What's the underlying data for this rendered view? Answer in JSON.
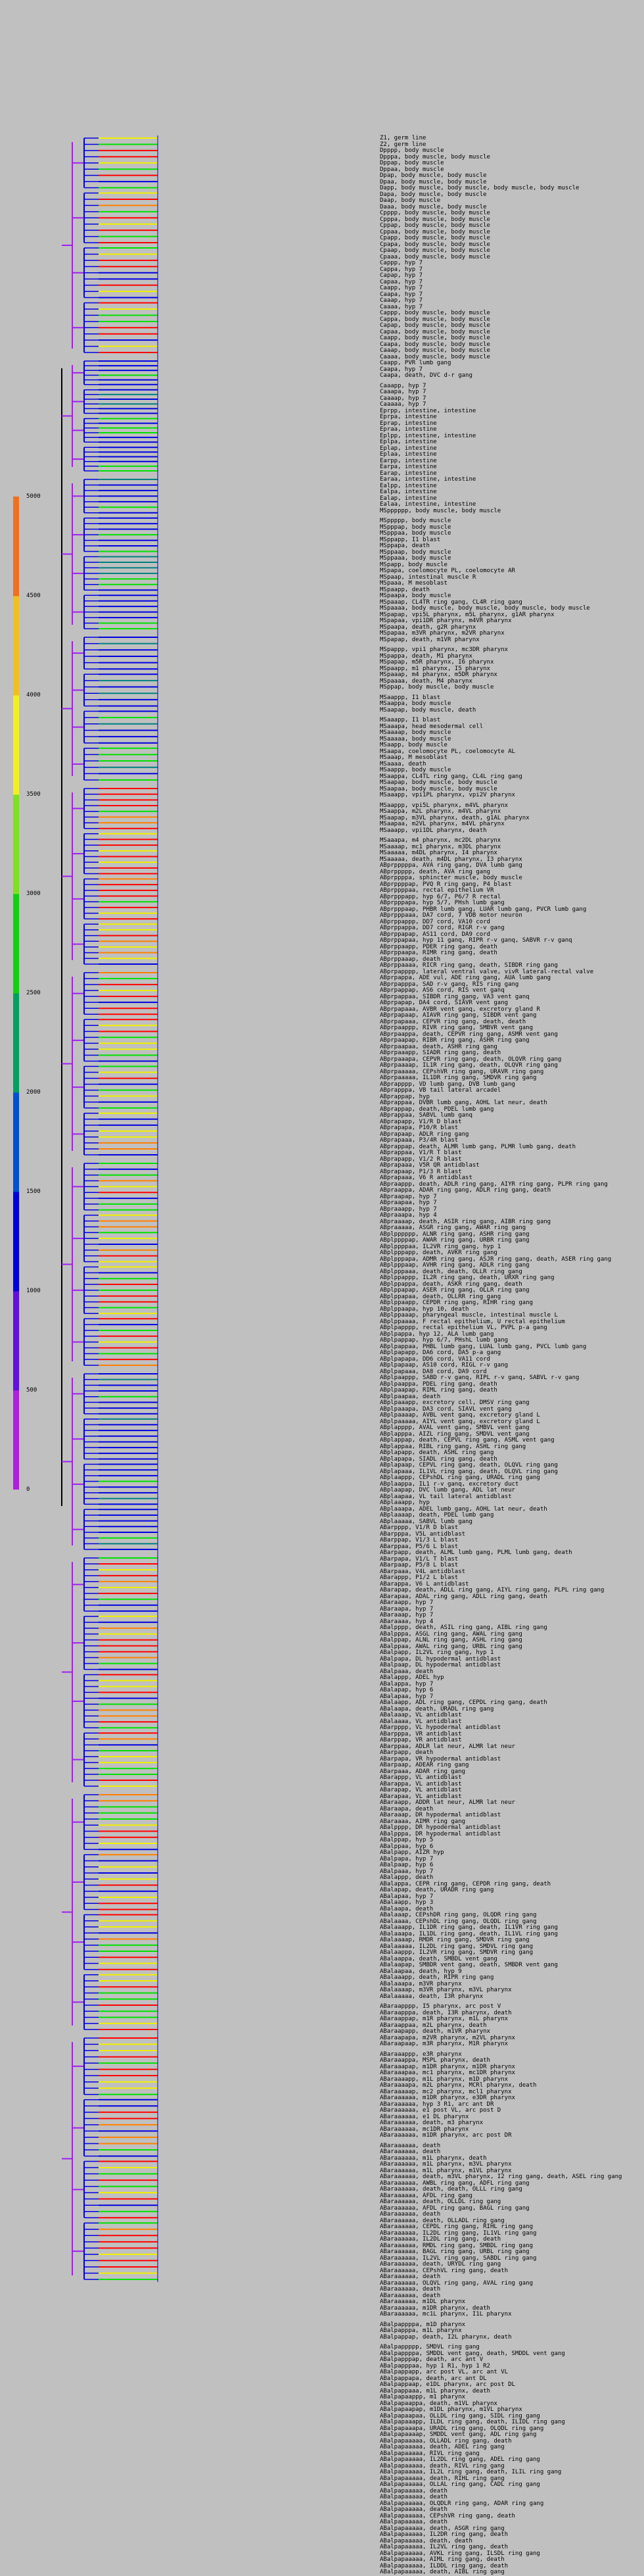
{
  "legend": {
    "ticks": [
      "5000",
      "4500",
      "4000",
      "3500",
      "3000",
      "2500",
      "2000",
      "1500",
      "1000",
      "500",
      "0"
    ],
    "colors": [
      "#b020e0",
      "#6010e0",
      "#0000e0",
      "#0050d0",
      "#00a060",
      "#10d010",
      "#80e020",
      "#f0f020",
      "#f0c020",
      "#f07020"
    ]
  },
  "colors": {
    "background": "#c0c0c0",
    "root_line": "#000000",
    "early": "#a020f0",
    "mid": "#0000e0",
    "teal": "#008080",
    "green": "#00e000",
    "yellow": "#f0f000",
    "orange": "#ff8000",
    "red": "#ff0000"
  },
  "labels": [
    "Z1, germ line",
    "Z2, germ line",
    "Dpppp, body muscle",
    "Dpppa, body muscle, body muscle",
    "Dppap, body muscle",
    "Dppaa, body muscle",
    "Dpap, body muscle, body muscle",
    "Dpaa, body muscle, body muscle",
    "Dapp, body muscle, body muscle, body muscle, body muscle",
    "Dapa, body muscle, body muscle",
    "Daap, body muscle",
    "Daaa, body muscle, body muscle",
    "Cpppp, body muscle, body muscle",
    "Cpppa, body muscle, body muscle",
    "Cppap, body muscle, body muscle",
    "Cppaa, body muscle, body muscle",
    "Cpapp, body muscle, body muscle",
    "Cpapa, body muscle, body muscle",
    "Cpaap, body muscle, body muscle",
    "Cpaaa, body muscle, body muscle",
    "Cappp, hyp 7",
    "Cappa, hyp 7",
    "Capap, hyp 7",
    "Capaa, hyp 7",
    "Caapp, hyp 7",
    "Caapa, hyp 7",
    "Caaap, hyp 7",
    "Caaaa, hyp 7",
    "Cappp, body muscle, body muscle",
    "Cappa, body muscle, body muscle",
    "Capap, body muscle, body muscle",
    "Capaa, body muscle, body muscle",
    "Caapp, body muscle, body muscle",
    "Caapa, body muscle, body muscle",
    "Caaap, body muscle, body muscle",
    "Caaaa, body muscle, body muscle",
    "Caapp, PVR lumb gang",
    "Caapa, hyp 7",
    "Caapa, death, DVC d-r gang",
    "",
    "Caaapp, hyp 7",
    "Caaapa, hyp 7",
    "Caaaap, hyp 7",
    "Caaaaa, hyp 7",
    "Eprpp, intestine, intestine",
    "Eprpa, intestine",
    "Eprap, intestine",
    "Epraa, intestine",
    "Eplpp, intestine, intestine",
    "Eplpa, intestine",
    "Eplap, intestine",
    "Eplaa, intestine",
    "Earpp, intestine",
    "Earpa, intestine",
    "Earap, intestine",
    "Earaa, intestine, intestine",
    "Ealpp, intestine",
    "Ealpa, intestine",
    "Ealap, intestine",
    "Ealaa, intestine, intestine",
    "MSpppppp, body muscle, body muscle",
    "",
    "MSppppp, body muscle",
    "MSpppap, body muscle",
    "MSpppaa, body muscle",
    "MSppapp, I1 blast",
    "MSppapa, death",
    "MSppaap, body muscle",
    "MSppaaa, body muscle",
    "MSpapp, body muscle",
    "MSpapa, coelomocyte PL, coelomocyte AR",
    "MSpaap, intestinal muscle R",
    "MSpaaa, M mesoblast",
    "MSpaapp, death",
    "MSpaapa, body muscle",
    "MSpaaap, CL4TR ring gang, CL4R ring gang",
    "MSpaaaa, body muscle, body muscle, body muscle, body muscle",
    "MSpapap, vpi5L pharynx, m5L pharynx, g1AR pharynx",
    "MSpapaa, vpi1DR pharynx, m4VR pharynx",
    "MSpaapa, death, g2R pharynx",
    "MSpapaa, m3VR pharynx, m2VR pharynx",
    "MSpapap, death, m1VR pharynx",
    "",
    "MSpappp, vpi1 pharynx, mc3DR pharynx",
    "MSpappa, death, M1 pharynx",
    "MSpapap, m5R pharynx, I6 pharynx",
    "MSpaapp, m1 pharynx, I5 pharynx",
    "MSpaaap, m4 pharynx, m5DR pharynx",
    "MSpaaaa, death, M4 pharynx",
    "MSppap, body muscle, body muscle",
    "",
    "MSaappp, I1 blast",
    "MSaappa, body muscle",
    "MSaapap, body muscle, death",
    "",
    "MSaaapp, I1 blast",
    "MSaaapa, head mesodermal cell",
    "MSaaaap, body muscle",
    "MSaaaaa, body muscle",
    "MSaapp, body muscle",
    "MSaapa, coelomocyte PL, coelomocyte AL",
    "MSaaap, M mesoblast",
    "MSaaaa, death",
    "MSaappp, body muscle",
    "MSaappa, CL4TL ring gang, CL4L ring gang",
    "MSaapap, body muscle, body muscle",
    "MSaapaa, body muscle, body muscle",
    "MSaaapp, vpi1PL pharynx, vpi2V pharynx",
    "",
    "MSaappp, vpi5L pharynx, m4VL pharynx",
    "MSaappa, m2L pharynx, m4VL pharynx",
    "MSaapap, m3VL pharynx, death, g1AL pharynx",
    "MSaapaa, m2VL pharynx, m4VL pharynx",
    "MSaaapp, vpi1DL pharynx, death",
    "",
    "MSaaapa, m4 pharynx, mc2DL pharynx",
    "MSaaaap, mc1 pharynx, m3DL pharynx",
    "MSaaaaa, m4DL pharynx, I4 pharynx",
    "MSaaaaa, death, m4DL pharynx, I3 pharynx",
    "ABprpppppa, AVA ring gang, DVA lumb gang",
    "ABprppppp, death, AVA ring gang",
    "ABprppppa, sphincter muscle, body muscle",
    "ABprppppap, PVQ R ring gang, P4 blast",
    "ABprppppaa, rectal epithelium VR",
    "ABprpppapp, hyp 6/7, P6/7 R rectal",
    "ABprpppapa, hyp 5/7, PHsh lumb gang",
    "ABprpppaap, PHBR lumb gang, LUAR lumb gang, PVCR lumb gang",
    "ABprpppaaa, DA7 cord, 7 VDB motor neuron",
    "ABprppappp, DD7 cord, VA10 cord",
    "ABprppappa, DD7 cord, RIGR r-v gang",
    "ABprppapap, AS11 cord, DA9 cord",
    "ABprppapaa, hyp 11 ganq, RIPR r-v ganq, SABVR r-v ganq",
    "ABprppaapp, PDER ring gang, death",
    "ABprppaapa, RIMR ring gang, death",
    "ABprppaaap, death",
    "ABprppaaaa, RICR ring gang, death, SIBDR ring gang",
    "ABprpapppp, lateral ventral valve, vivR lateral-rectal valve",
    "ABprpappa, ADE vul, ADE ring gang, AUA lumb gang",
    "ABprpapppa, SAD r-v ganq, RIS ring gang",
    "ABprpappap, AS6 cord, RIS vent ganq",
    "ABprpappaa, SIBDR ring gang, VA3 vent ganq",
    "ABprpapap, DA4 cord, SIAVR vent gang",
    "ABprpapaaa, AVBR vent ganq, excretory gland R",
    "ABprpapaap, AIAVR ring gang, SIBDR vent gang",
    "ABprpapaaa, CEPVR ring gang, death, death",
    "ABprpaappp, RIVR ring gang, SMBVR vent gang",
    "ABprpaappa, death, CEPVR ring gang, ASMR vent gang",
    "ABprpaapap, RIBR ring gang, ASHR ring gang",
    "ABprpaapaa, death, ASHR ring gang",
    "ABprpaaapp, SIADR ring gang, death",
    "ABprpaaapa, CEPVR ring gang, death, OLQVR ring gang",
    "ABprpaaaap, IL1R ring gang, death, OLQVR ring gang",
    "ABprpaaaaa, CEPshVR ring gang, URAVR ring gang",
    "ABprpaaaaa, IL1DR ring gang, SMDVR ring gang",
    "ABprapppp, VD lumb gang, DVB lumb gang",
    "ABprapppa, VB tail lateral arcadel",
    "ABprappap, hyp",
    "ABprappaa, DVBR lumb gang, AOHL lat neur, death",
    "ABprappap, death, PDEL lumb gang",
    "ABprappaa, SABVL lumb ganq",
    "ABprapapp, V1/R D blast",
    "ABprapapa, P10/R blast",
    "ABprapaap, ADLR ring gang",
    "ABprapaaa, P3/4R blast",
    "ABprappap, death, ALMR lumb gang, PLMR lumb gang, death",
    "ABprappaa, V1/R T blast",
    "ABprapapp, V1/2 R blast",
    "ABprapaaa, V5R QR antidblast",
    "ABprapaap, P1/3 R blast",
    "ABprapaaa, V6 R antidblast",
    "ABpraappp, death, ADLR ring gang, AIYR ring gang, PLPR ring gang",
    "ABpraappa, ADAR ring gang, ADLR ring gang, death",
    "ABpraapap, hyp 7",
    "ABpraapaa, hyp 7",
    "ABpraaapp, hyp 7",
    "ABpraaapa, hyp 4",
    "ABpraaaap, death, ASIR ring gang, AIBR ring gang",
    "ABpraaaaa, ASGR ring gang, AWAR ring gang",
    "ABplpppppp, ALNR ring gang, ASHR ring gang",
    "ABplppppap, AWAR ring gang, URBR ring gang",
    "ABplppppaa, IL2VR ring gang, hyp 1",
    "ABplpppapp, death, AVKR ring gang",
    "ABplpppapa, ADMR ring gang, ASJR ring gang, death, ASER ring gang",
    "ABplpppaap, AVHR ring gang, ADLR ring gang",
    "ABplpppaaa, death, death, OLLR ring gang",
    "ABplppappp, IL2R ring gang, death, URXR ring gang",
    "ABplppappa, death, ASKR ring gang, death",
    "ABplppapap, ASER ring gang, OLLR ring gang",
    "ABplppapaa, death, OLLRR ring gang",
    "ABplppaapp, CEPDR ring gang, RIHR ring gang",
    "ABplppaapa, hyp 10, death",
    "ABplppaaap, pharyngeal muscle, intestinal muscle L",
    "ABplppaaaa, F rectal epithelium, U rectal epithelium",
    "ABplpapppp, rectal epithelium VL, PVPL p-a gang",
    "ABplpappa, hyp 12, ALA lumb gang",
    "ABplpappap, hyp 6/7, PHshL lumb gang",
    "ABplpappaa, PHBL lumb gang, LUAL lumb gang, PVCL lumb gang",
    "ABplpapapp, DA6 cord, DA5 p-a gang",
    "ABplpapapa, DD6 cord, VA11 cord",
    "ABplpapaap, AS10 cord, RIGL r-v gang",
    "ABplpapaaa, DA8 cord, DA9 cord",
    "ABplpaappp, SABD r-v ganq, RIPL r-v ganq, SABVL r-v gang",
    "ABplpaappa, PDEL ring gang, death",
    "ABplpaapap, RIML ring gang, death",
    "ABplpaapaa, death",
    "ABplpaaapp, excretory cell, DMSV ring gang",
    "ABplpaaapa, DA3 cord, SIAVL vent gang",
    "ABplpaaaap, AVBL vent ganq, excretory gland L",
    "ABplpaaaaa, AIYL vent ganq, excretory gland L",
    "ABplapppp, AVAL vent gang, SMBVL vent gang",
    "ABplapppa, AIZL ring gang, SMDVL vent gang",
    "ABplappap, death, CEPVL ring gang, ASML vent gang",
    "ABplappaa, RIBL ring gang, ASHL ring gang",
    "ABplapapp, death, ASHL ring gang",
    "ABplapapa, SIADL ring gang, death",
    "ABplapaap, CEPVL ring gang, death, OLQVL ring gang",
    "ABplapaaa, IL1VL ring gang, death, OLQVL ring gang",
    "ABplaappp, CEPshDL ring gang, URADL ring gang",
    "ABplaappa, IL1 r-v ganq, excretory duct",
    "ABplaapap, DVC lumb gang, ADL lat neur",
    "ABplaapaa, VL tail lateral antidblast",
    "ABplaaapp, hyp",
    "ABplaaapa, ADEL lumb gang, AOHL lat neur, death",
    "ABplaaaap, death, PDEL lumb gang",
    "ABplaaaaa, SABVL lumb gang",
    "ABarpppp, V1/R D blast",
    "ABarpppa, V5L antidblast",
    "ABarppap, V1/3 L blast",
    "ABarppaa, P5/6 L blast",
    "ABarpapp, death, ALML lumb gang, PLML lumb gang, death",
    "ABarpapa, V1/L T blast",
    "ABarpaap, P5/8 L blast",
    "ABarpaaa, V4L antidblast",
    "ABarappp, P1/2 L blast",
    "ABarappa, V6 L antidblast",
    "ABarapap, death, ADLL ring gang, AIYL ring gang, PLPL ring gang",
    "ABarapaa, ADAL ring gang, ADLL ring gang, death",
    "ABaraapp, hyp 7",
    "ABaraapa, hyp 7",
    "ABaraaap, hyp 7",
    "ABaraaaa, hyp 4",
    "ABalpppp, death, ASIL ring gang, AIBL ring gang",
    "ABalpppa, ASGL ring gang, AWAL ring gang",
    "ABalppap, ALNL ring gang, ASHL ring gang",
    "ABalppaa, AWAL ring gang, URBL ring gang",
    "ABalpapp, IL2VL ring gang, hyp 1",
    "ABalpapa, DL hypodermal antidblast",
    "ABalpaap, DL hypodermal antidblast",
    "ABalpaaa, death",
    "ABalappp, ADEL hyp",
    "ABalappa, hyp 7",
    "ABalapap, hyp 6",
    "ABalapaa, hyp 7",
    "ABalaapp, ADL ring gang, CEPDL ring gang, death",
    "ABalaapa, death, URADL ring gang",
    "ABalaaap, VL antidblast",
    "ABalaaaa, VL antidblast",
    "ABarpppp, VL hypodermal antidblast",
    "ABarpppa, VR antidblast",
    "ABarppap, VR antidblast",
    "ABarppaa, ADLR lat neur, ALMR lat neur",
    "ABarpapp, death",
    "ABarpapa, VR hypodermal antidblast",
    "ABarpaap, ADEAR ring gang",
    "ABarpaaa, ADAR ring gang",
    "ABarappp, VL antidblast",
    "ABarappa, VL antidblast",
    "ABarapap, VL antidblast",
    "ABarapaa, VL antidblast",
    "ABaraapp, ADDR lat neur, ALMR lat neur",
    "ABaraapa, death",
    "ABaraaap, DR hypodermal antidblast",
    "ABaraaaa, AIMR ring gang",
    "ABalpppp, DR hypodermal antidblast",
    "ABalpppa, DR hypodermal antidblast",
    "ABalppap, hyp 5",
    "ABalppaa, hyp 6",
    "ABalpapp, AIZR hyp",
    "ABalpapa, hyp 7",
    "ABalpaap, hyp 6",
    "ABalpaaa, hyp 7",
    "ABalappp, death",
    "ABalappa, CEPR ring gang, CEPDR ring gang, death",
    "ABalapap, death, URADR ring gang",
    "ABalapaa, hyp 7",
    "ABalaapp, hyp 3",
    "ABalaapa, death",
    "ABalaaap, CEPshDR ring gang, OLQDR ring gang",
    "ABalaaaa, CEPshDL ring gang, OLQDL ring gang",
    "ABalaaapp, IL1DR ring gang, death, IL1VR ring gang",
    "ABalaaapa, IL1DL ring gang, death, IL1VL ring gang",
    "ABalaaaap, RMDR ring gang, SMDVR ring gang",
    "ABalaaaaa, IL2DL ring gang, SMDVL ring gang",
    "ABalaappp, IL2VR ring gang, SMDVR ring gang",
    "ABalaappa, death, SMBDL vent gang",
    "ABalaapap, SMBDR vent gang, death, SMBDR vent gang",
    "ABalaapaa, death, hyp 9",
    "ABalaaapp, death, RIPR ring gang",
    "ABalaaapa, m3VR pharynx",
    "ABalaaaap, m3VR pharynx, m3VL pharynx",
    "ABalaaaaa, death, I3R pharynx",
    "",
    "ABaraapppp, I5 pharynx, arc post V",
    "ABaraapppa, death, I3R pharynx, death",
    "ABaraappap, m1R pharynx, m1L pharynx",
    "ABaraappaa, m2L pharynx, death",
    "ABaraapapp, death, m1VR pharynx",
    "ABaraapapa, m2VR pharynx, m2VL pharynx",
    "ABaraapaap, m3R pharynx, M1R pharynx",
    "",
    "ABaraaappp, e3R pharynx",
    "ABaraaappa, MSPL pharynx, death",
    "ABaraaapap, m1DR pharynx, m1DR pharynx",
    "ABaraaapaa, mc1 pharynx, mc1DR pharynx",
    "ABaraaaapp, m1L pharynx, m1D pharynx",
    "ABaraaaapa, m2L pharynx, MCRl pharynx, death",
    "ABaraaaaap, mc2 pharynx, mcl1 pharynx",
    "ABaraaaaaa, m1DR pharynx, e3DR pharynx",
    "ABaraaaaaa, hyp 3 R1, arc ant DR",
    "ABaraaaaaa, e1 post VL, arc post D",
    "ABaraaaaaa, e1 DL pharynx",
    "ABaraaaaaa, death, m3 pharynx",
    "ABaraaaaaa, mc1DR pharynx",
    "ABaraaaaaa, m1DR pharynx, arc post DR",
    "",
    "ABaraaaaaa, death",
    "ABaraaaaaa, death",
    "ABaraaaaaa, m1L pharynx, death",
    "ABaraaaaaa, m1L pharynx, m3VL pharynx",
    "ABaraaaaaa, m1L pharynx, m1VL pharynx",
    "ABaraaaaaa, death, m3VL pharynx, I2 ring gang, death, ASEL ring gang",
    "ABaraaaaaa, AWBL ring gang, ADFL ring gang",
    "ABaraaaaaa, death, death, OLLL ring gang",
    "ABaraaaaaa, AFDL ring gang",
    "ABaraaaaaa, death, OLLDL ring gang",
    "ABaraaaaaa, AFDL ring gang, BAGL ring gang",
    "ABaraaaaaa, death",
    "ABaraaaaaa, death, OLLADL ring gang",
    "ABaraaaaaa, CEPDL ring gang, RIHL ring gang",
    "ABaraaaaaa, IL2DL ring gang, IL1VL ring gang",
    "ABaraaaaaa, IL2DL ring gang, death",
    "ABaraaaaaa, RMDL ring gang, SMBDL ring gang",
    "ABaraaaaaa, BAGL ring gang, URBL ring gang",
    "ABaraaaaaa, IL2VL ring gang, SABDL ring gang",
    "ABaraaaaaa, death, URYDL ring gang",
    "ABaraaaaaa, CEPshVL ring gang, death",
    "ABaraaaaaa, death",
    "ABaraaaaaa, OLQVL ring gang, AVAL ring gang",
    "ABaraaaaaa, death",
    "ABaraaaaaa, death",
    "ABaraaaaaa, m1DL pharynx",
    "ABaraaaaaa, m1DR pharynx, death",
    "ABaraaaaaa, mc1L pharynx, I1L pharynx",
    "",
    "ABalpappppa, m1D pharynx",
    "ABalpapppa, m1L pharynx",
    "ABalpappap, death, I2L pharynx, death",
    "",
    "ABalpappppp, SMDVL ring gang",
    "ABalpappppa, SMDDL vent gang, death, SMDDL vent gang",
    "ABalpapppap, death, arc ant V",
    "ABalpapppaa, hyp 1 R1, hyp 1 R2",
    "ABalpappapp, arc post VL, arc ant VL",
    "ABalpappapa, death, arc ant DL",
    "ABalpappaap, e1DL pharynx, arc post DL",
    "ABalpappaaa, m1L pharynx, death",
    "ABalpapaappp, m1 pharynx",
    "ABalpapaappa, death, m1VL pharynx",
    "ABalpapaapap, m1DL pharynx, m1VL pharynx",
    "ABalpapaapaa, OLLDL ring gang, SIDL ring gang",
    "ABalpapaaapp, ILDL ring gang, death, ILIDL ring gang",
    "ABalpapaaapa, URADL ring gang, OLQDL ring gang",
    "ABalpapaaaap, SMDDL vent gang, ADL ring gang",
    "ABalpapaaaaa, OLLADL ring gang, death",
    "ABalpapaaaaa, death, ADEL ring gang",
    "ABalpapaaaaa, RIVL ring gang",
    "ABalpapaaaaa, IL2DL ring gang, ADEL ring gang",
    "ABalpapaaaaa, death, RIVL ring gang",
    "ABalpapaaaaa, IL2L ring gang, death, ILIL ring gang",
    "ABalpapaaaaa, death, RIHL ring gang",
    "ABalpapaaaaa, OLLAL ring gang, CADL ring gang",
    "ABalpapaaaaa, death",
    "ABalpapaaaaa, death",
    "ABalpapaaaaa, OLQDLR ring gang, ADAR ring gang",
    "ABalpapaaaaa, death",
    "ABalpapaaaaa, CEPshVR ring gang, death",
    "ABalpapaaaaa, death",
    "ABalpapaaaaa, death, ASGR ring gang",
    "ABalpapaaaaa, IL2DR ring gang, death",
    "ABalpapaaaaa, death, death",
    "ABalpapaaaaa, IL2VL ring gang, death",
    "ABalpapaaaaa, AVKL ring gang, ILSDL ring gang",
    "ABalpapaaaaa, AIML ring gang, death",
    "ABalpapaaaaa, ILDDL ring gang, death",
    "ABalpapaaaaa, death, AIBL ring gang"
  ]
}
